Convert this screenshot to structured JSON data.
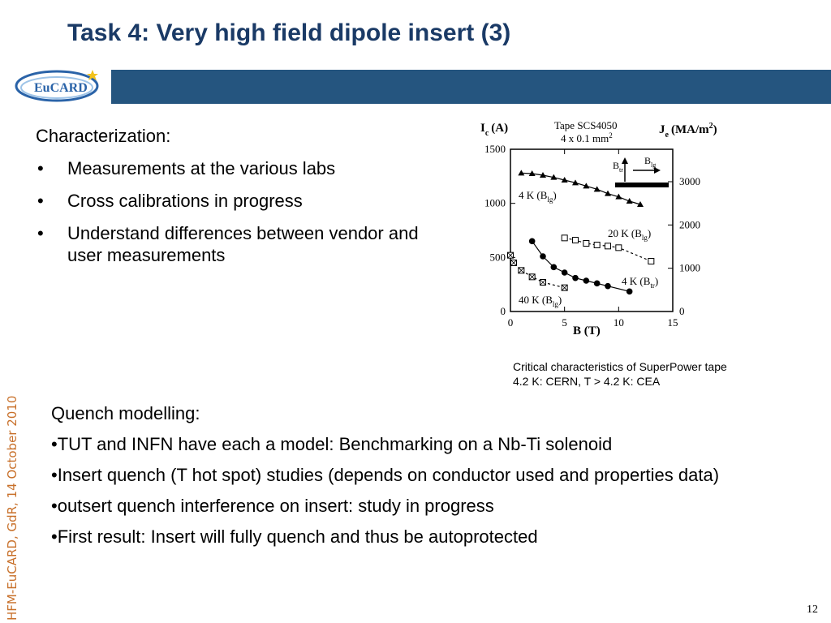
{
  "slide": {
    "title": "Task 4: Very high field dipole insert (3)",
    "logo_text": "EuCARD",
    "side_text": "HFM-EuCARD, GdR, 14 October 2010",
    "page_number": "12",
    "colors": {
      "banner": "#25557f",
      "title": "#1a3a66",
      "side_text": "#c8702a"
    }
  },
  "characterization": {
    "heading": "Characterization:",
    "bullets": [
      "Measurements at the various labs",
      "Cross calibrations in progress",
      "Understand differences between vendor and user measurements"
    ]
  },
  "figure": {
    "caption_line1": "Critical characteristics of SuperPower tape",
    "caption_line2": "4.2 K: CERN, T > 4.2 K: CEA"
  },
  "chart_data": {
    "type": "scatter",
    "xlabel": "B (T)",
    "ylabel_left_main": "I",
    "ylabel_left_sub": "c",
    "ylabel_left_unit": "(A)",
    "ylabel_right_main": "J",
    "ylabel_right_sub": "e",
    "ylabel_right_unit": "(MA/m",
    "ylabel_right_sup": "2",
    "ylabel_right_close": ")",
    "inset_title_line1": "Tape SCS4050",
    "inset_title_line2": "4 x 0.1 mm",
    "inset_title_sup": "2",
    "xlim": [
      0,
      15
    ],
    "ylim": [
      0,
      1500
    ],
    "ylim_right": [
      0,
      3750
    ],
    "x_ticks": [
      0,
      5,
      10,
      15
    ],
    "y_ticks": [
      0,
      500,
      1000,
      1500
    ],
    "y_ticks_right": [
      0,
      1000,
      2000,
      3000
    ],
    "inset_labels": {
      "b_tr": "B",
      "b_tr_sub": "tr",
      "b_lg": "B",
      "b_lg_sub": "lg"
    },
    "series": [
      {
        "name": "4 K (Blg)",
        "label_main": "4 K (B",
        "label_sub": "lg",
        "label_close": ")",
        "marker": "triangle",
        "line": "solid",
        "x": [
          1,
          2,
          3,
          4,
          5,
          6,
          7,
          8,
          9,
          10,
          11,
          12
        ],
        "y": [
          1280,
          1275,
          1260,
          1240,
          1215,
          1190,
          1160,
          1130,
          1090,
          1060,
          1020,
          990
        ]
      },
      {
        "name": "20 K (Blg)",
        "label_main": "20 K (B",
        "label_sub": "lg",
        "label_close": ")",
        "marker": "square",
        "line": "dashed",
        "x": [
          5,
          6,
          7,
          8,
          9,
          10,
          13
        ],
        "y": [
          680,
          660,
          630,
          615,
          605,
          590,
          465
        ]
      },
      {
        "name": "4 K (Btr)",
        "label_main": "4 K (B",
        "label_sub": "tr",
        "label_close": ")",
        "marker": "circle",
        "line": "solid",
        "x": [
          2,
          3,
          4,
          5,
          6,
          7,
          8,
          9,
          11
        ],
        "y": [
          650,
          510,
          410,
          360,
          310,
          285,
          260,
          235,
          185
        ]
      },
      {
        "name": "40 K (Blg)",
        "label_main": "40 K (B",
        "label_sub": "lg",
        "label_close": ")",
        "marker": "crossed-square",
        "line": "dashed",
        "x": [
          0,
          0.3,
          1,
          2,
          3,
          5
        ],
        "y": [
          520,
          450,
          380,
          320,
          270,
          220
        ]
      }
    ]
  },
  "quench": {
    "heading": "Quench modelling:",
    "items": [
      "•TUT and INFN have each a model: Benchmarking on a Nb-Ti solenoid",
      "•Insert quench (T hot spot) studies (depends on conductor used and properties data)",
      "•outsert quench interference on insert: study in progress",
      "•First result: Insert will fully quench and thus be autoprotected"
    ]
  }
}
